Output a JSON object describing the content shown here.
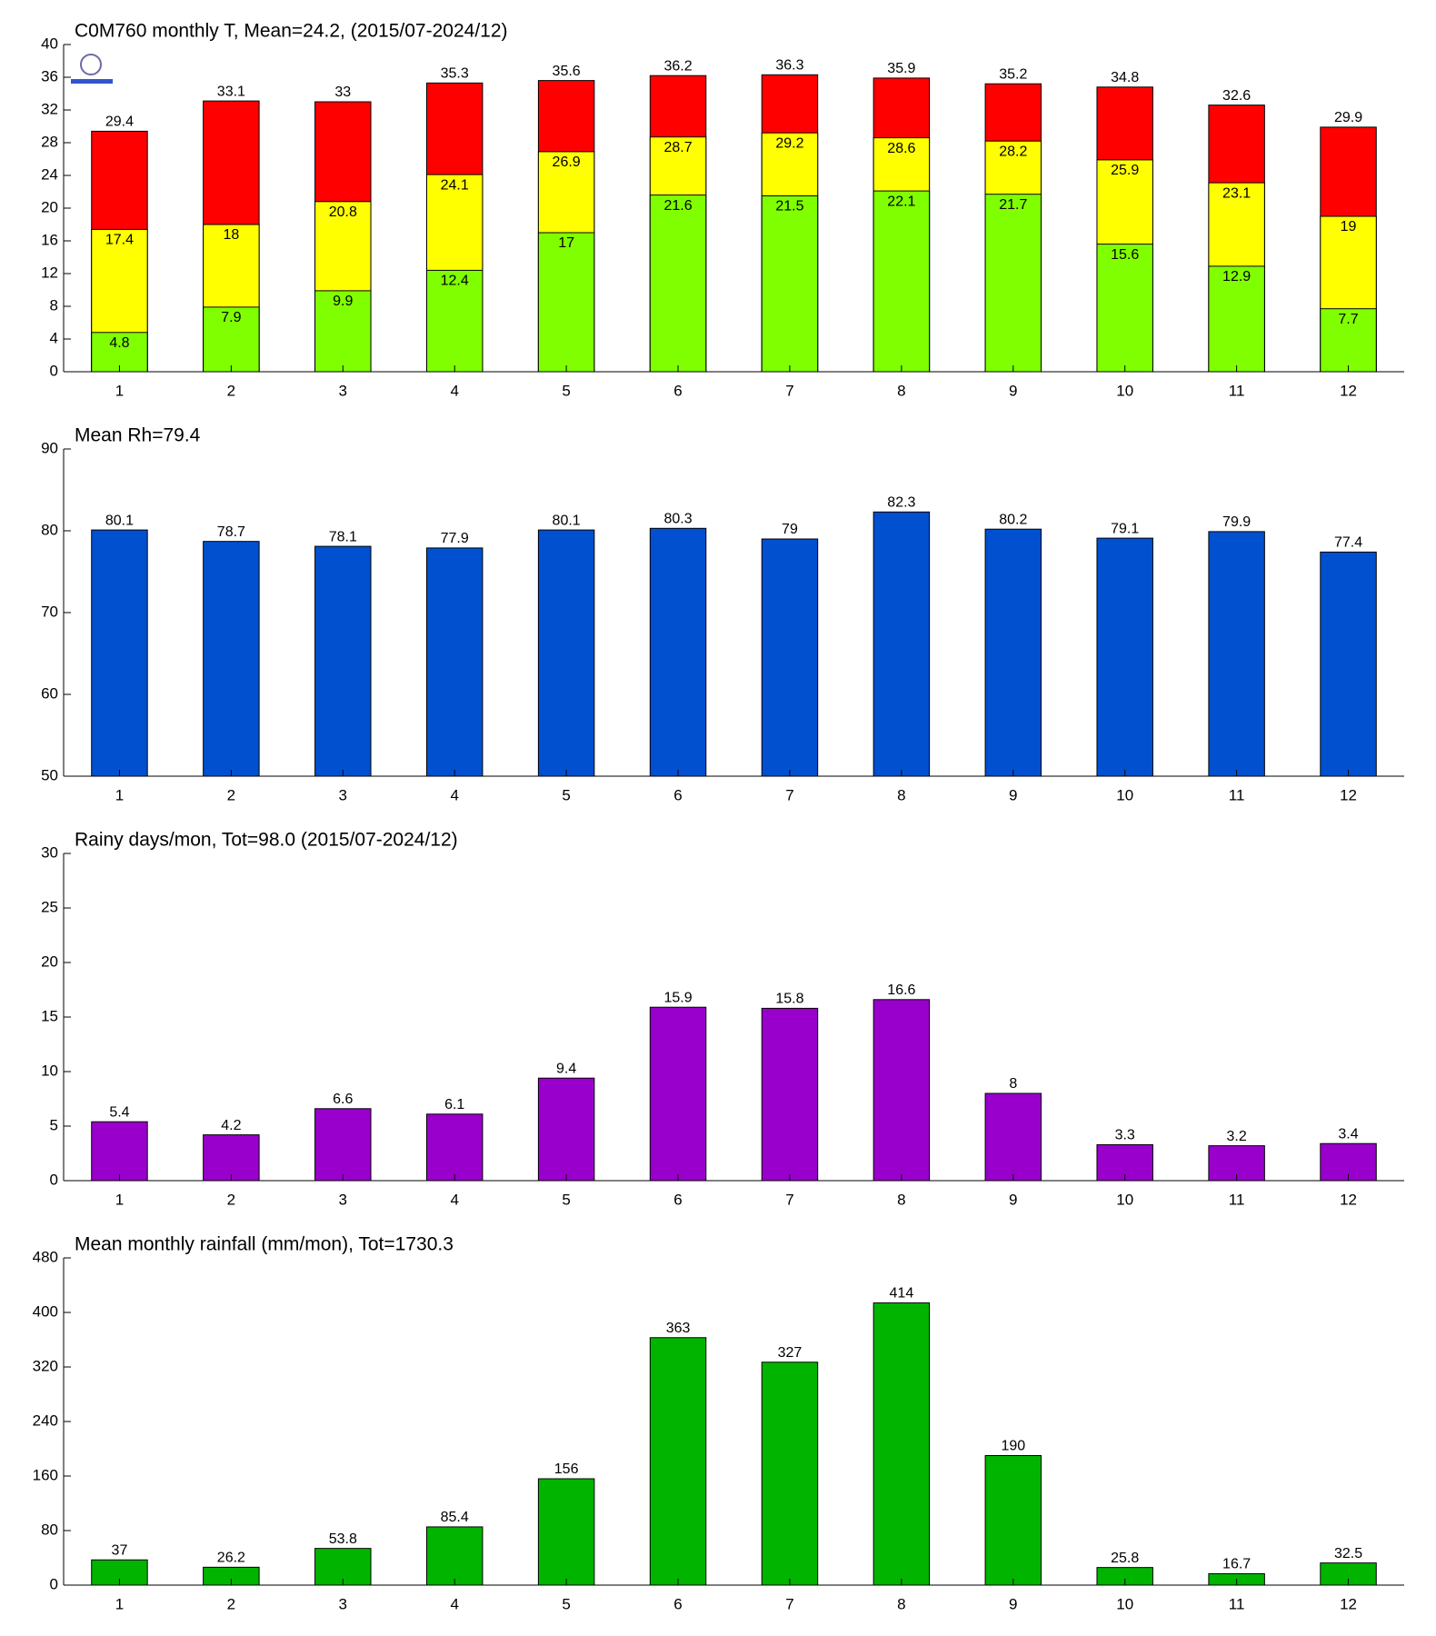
{
  "chart_data": [
    {
      "type": "bar",
      "barmode": "overlay",
      "title": "C0M760 monthly T, Mean=24.2, (2015/07-2024/12)",
      "categories": [
        "1",
        "2",
        "3",
        "4",
        "5",
        "6",
        "7",
        "8",
        "9",
        "10",
        "11",
        "12"
      ],
      "series": [
        {
          "color": "#ff0000",
          "values": [
            29.4,
            33.1,
            33,
            35.3,
            35.6,
            36.2,
            36.3,
            35.9,
            35.2,
            34.8,
            32.6,
            29.9
          ]
        },
        {
          "color": "#ffff00",
          "values": [
            17.4,
            18,
            20.8,
            24.1,
            26.9,
            28.7,
            29.2,
            28.6,
            28.2,
            25.9,
            23.1,
            19
          ]
        },
        {
          "color": "#80ff00",
          "values": [
            4.8,
            7.9,
            9.9,
            12.4,
            17,
            21.6,
            21.5,
            22.1,
            21.7,
            15.6,
            12.9,
            7.7
          ]
        }
      ],
      "ylim": [
        0,
        40
      ],
      "yticks": [
        0,
        4,
        8,
        12,
        16,
        20,
        24,
        28,
        32,
        36,
        40
      ]
    },
    {
      "type": "bar",
      "title": "Mean Rh=79.4",
      "categories": [
        "1",
        "2",
        "3",
        "4",
        "5",
        "6",
        "7",
        "8",
        "9",
        "10",
        "11",
        "12"
      ],
      "series": [
        {
          "color": "#0050d0",
          "values": [
            80.1,
            78.7,
            78.1,
            77.9,
            80.1,
            80.3,
            79,
            82.3,
            80.2,
            79.1,
            79.9,
            77.4
          ]
        }
      ],
      "ylim": [
        50,
        90
      ],
      "yticks": [
        50,
        60,
        70,
        80,
        90
      ]
    },
    {
      "type": "bar",
      "title": "Rainy days/mon, Tot=98.0 (2015/07-2024/12)",
      "categories": [
        "1",
        "2",
        "3",
        "4",
        "5",
        "6",
        "7",
        "8",
        "9",
        "10",
        "11",
        "12"
      ],
      "series": [
        {
          "color": "#9900cc",
          "values": [
            5.4,
            4.2,
            6.6,
            6.1,
            9.4,
            15.9,
            15.8,
            16.6,
            8,
            3.3,
            3.2,
            3.4
          ]
        }
      ],
      "ylim": [
        0,
        30
      ],
      "yticks": [
        0,
        5,
        10,
        15,
        20,
        25,
        30
      ]
    },
    {
      "type": "bar",
      "title": "Mean monthly rainfall (mm/mon), Tot=1730.3",
      "categories": [
        "1",
        "2",
        "3",
        "4",
        "5",
        "6",
        "7",
        "8",
        "9",
        "10",
        "11",
        "12"
      ],
      "series": [
        {
          "color": "#00b400",
          "values": [
            37,
            26.2,
            53.8,
            85.4,
            156,
            363,
            327,
            414,
            190,
            25.8,
            16.7,
            32.5
          ]
        }
      ],
      "ylim": [
        0,
        480
      ],
      "yticks": [
        0,
        80,
        160,
        240,
        320,
        400,
        480
      ]
    }
  ]
}
